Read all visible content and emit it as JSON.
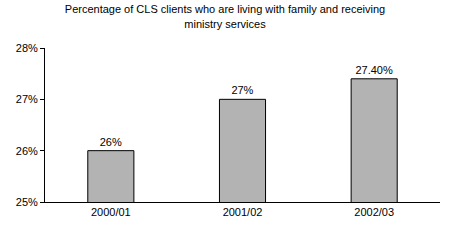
{
  "chart_data": {
    "type": "bar",
    "title": [
      "Percentage of CLS clients who are living with family and receiving",
      "ministry services"
    ],
    "categories": [
      "2000/01",
      "2001/02",
      "2002/03"
    ],
    "values": [
      26,
      27,
      27.4
    ],
    "value_labels": [
      "26%",
      "27%",
      "27.40%"
    ],
    "data_labels": true,
    "color": "#b3b3b3",
    "ylim": [
      25,
      28
    ],
    "yticks": [
      {
        "value": 25,
        "label": "25%"
      },
      {
        "value": 26,
        "label": "26%"
      },
      {
        "value": 27,
        "label": "27%"
      },
      {
        "value": 28,
        "label": "28%"
      }
    ],
    "grid": false
  }
}
